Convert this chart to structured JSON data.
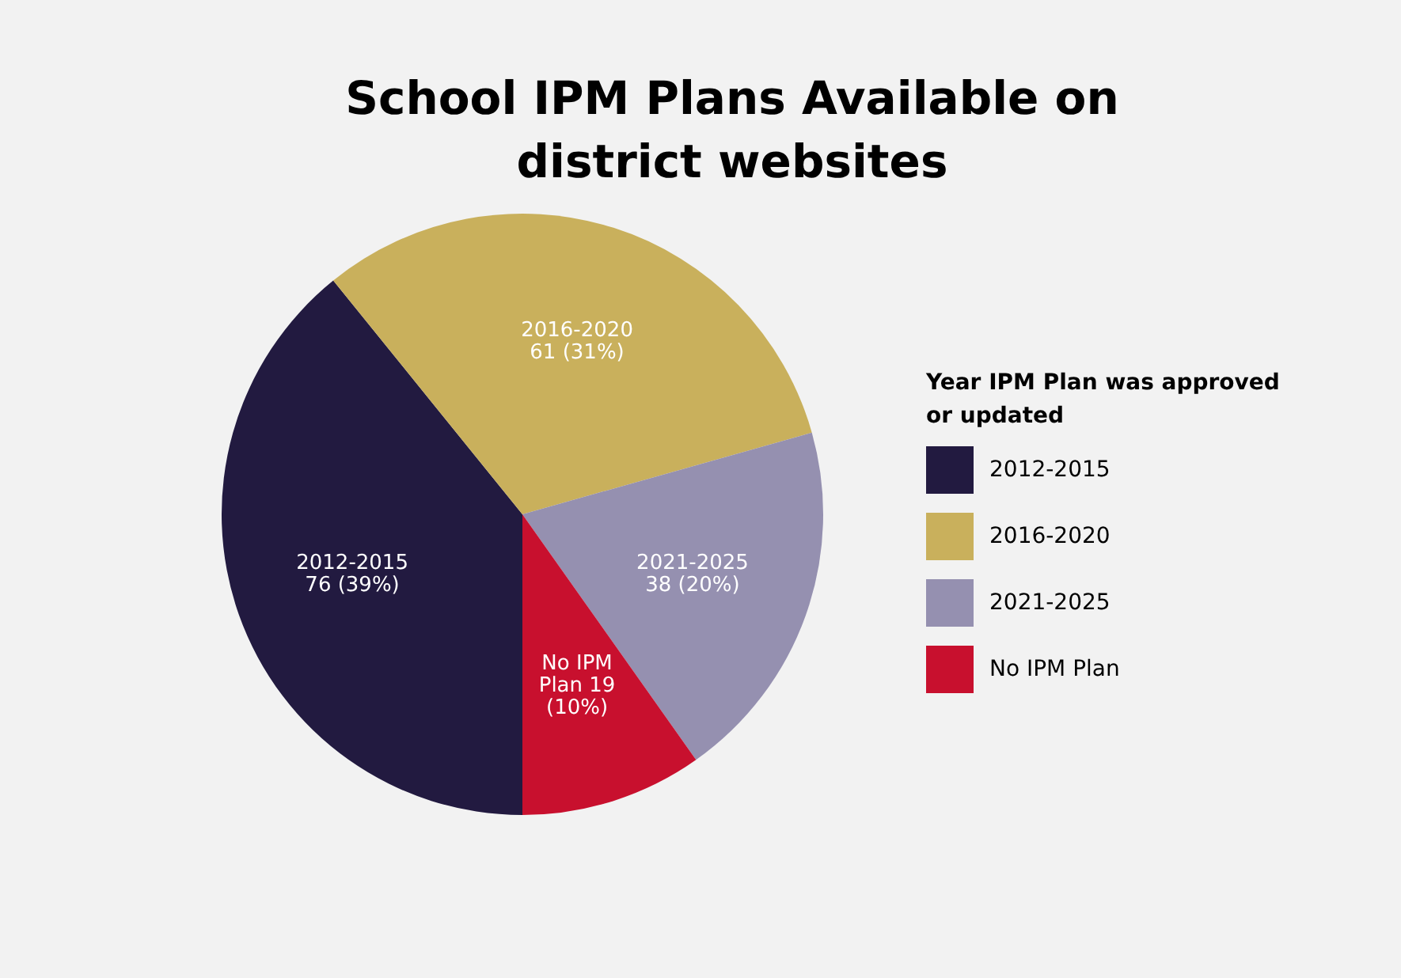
{
  "chart_data": {
    "type": "pie",
    "title": "School IPM Plans Available on district websites",
    "legend_title": "Year IPM Plan was approved or updated",
    "categories": [
      "2012-2015",
      "2016-2020",
      "2021-2025",
      "No IPM Plan"
    ],
    "values": [
      76,
      61,
      38,
      19
    ],
    "colors": [
      "#221a40",
      "#c9b05c",
      "#9590b0",
      "#c8102e"
    ],
    "value_labels": [
      "2012-2015\n76 (39%)",
      "2016-2020\n61 (31%)",
      "2021-2025\n38 (20%)",
      "No IPM\nPlan 19\n(10%)"
    ],
    "legend": "right"
  }
}
